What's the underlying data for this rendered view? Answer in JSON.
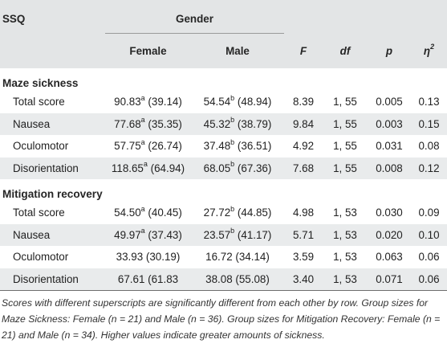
{
  "header": {
    "col_ssq": "SSQ",
    "col_gender": "Gender",
    "col_female": "Female",
    "col_male": "Male",
    "col_f": "F",
    "col_df": "df",
    "col_p": "p",
    "col_eta": "η",
    "col_eta_sup": "2"
  },
  "sections": [
    {
      "title": "Maze sickness",
      "rows": [
        {
          "label": "Total score",
          "female_val": "90.83",
          "female_sup": "a",
          "female_sd": " (39.14)",
          "male_val": "54.54",
          "male_sup": "b",
          "male_sd": " (48.94)",
          "f": "8.39",
          "df": "1, 55",
          "p": "0.005",
          "eta": "0.13"
        },
        {
          "label": "Nausea",
          "female_val": "77.68",
          "female_sup": "a",
          "female_sd": " (35.35)",
          "male_val": "45.32",
          "male_sup": "b",
          "male_sd": " (38.79)",
          "f": "9.84",
          "df": "1, 55",
          "p": "0.003",
          "eta": "0.15"
        },
        {
          "label": "Oculomotor",
          "female_val": "57.75",
          "female_sup": "a",
          "female_sd": " (26.74)",
          "male_val": "37.48",
          "male_sup": "b",
          "male_sd": " (36.51)",
          "f": "4.92",
          "df": "1, 55",
          "p": "0.031",
          "eta": "0.08"
        },
        {
          "label": "Disorientation",
          "female_val": "118.65",
          "female_sup": "a",
          "female_sd": " (64.94)",
          "male_val": "68.05",
          "male_sup": "b",
          "male_sd": " (67.36)",
          "f": "7.68",
          "df": "1, 55",
          "p": "0.008",
          "eta": "0.12"
        }
      ]
    },
    {
      "title": "Mitigation recovery",
      "rows": [
        {
          "label": "Total score",
          "female_val": "54.50",
          "female_sup": "a",
          "female_sd": " (40.45)",
          "male_val": "27.72",
          "male_sup": "b",
          "male_sd": " (44.85)",
          "f": "4.98",
          "df": "1, 53",
          "p": "0.030",
          "eta": "0.09"
        },
        {
          "label": "Nausea",
          "female_val": "49.97",
          "female_sup": "a",
          "female_sd": " (37.43)",
          "male_val": "23.57",
          "male_sup": "b",
          "male_sd": " (41.17)",
          "f": "5.71",
          "df": "1, 53",
          "p": "0.020",
          "eta": "0.10"
        },
        {
          "label": "Oculomotor",
          "female_val": "33.93",
          "female_sup": "",
          "female_sd": " (30.19)",
          "male_val": "16.72",
          "male_sup": "",
          "male_sd": " (34.14)",
          "f": "3.59",
          "df": "1, 53",
          "p": "0.063",
          "eta": "0.06"
        },
        {
          "label": "Disorientation",
          "female_val": "67.61",
          "female_sup": "",
          "female_sd": " (61.83",
          "male_val": "38.08",
          "male_sup": "",
          "male_sd": " (55.08)",
          "f": "3.40",
          "df": "1, 53",
          "p": "0.071",
          "eta": "0.06"
        }
      ]
    }
  ],
  "footnote": "Scores with different superscripts are significantly different from each other by row. Group sizes for Maze Sickness: Female (n = 21) and Male (n = 36). Group sizes for Mitigation Recovery: Female (n = 21) and Male (n = 34). Higher values indicate greater amounts of sickness."
}
